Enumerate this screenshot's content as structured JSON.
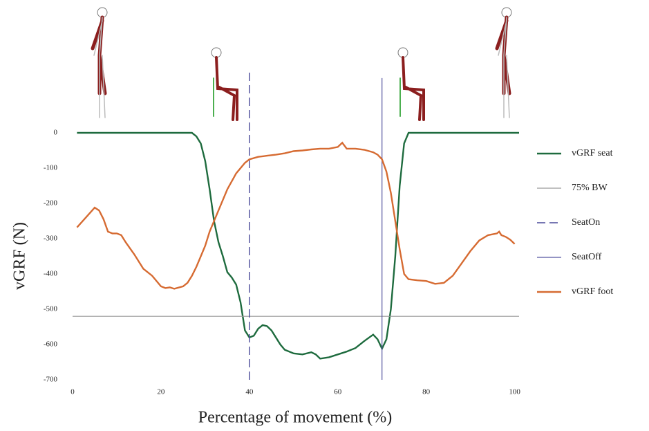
{
  "chart_data": {
    "type": "line",
    "y_label": "vGRF (N)",
    "x_label": "Percentage of movement (%)",
    "xlim": [
      0,
      101
    ],
    "ylim": [
      -700,
      0
    ],
    "xticks": [
      0,
      20,
      40,
      60,
      80,
      100
    ],
    "yticks": [
      0,
      -100,
      -200,
      -300,
      -400,
      -500,
      -600,
      -700
    ],
    "grid": false,
    "legend": "right",
    "series": [
      {
        "name": "vGRF seat",
        "color": "#1e6b3e",
        "style": "solid",
        "width": 2.4,
        "x": [
          1,
          27,
          28,
          29,
          30,
          31,
          32,
          33,
          34,
          35,
          36,
          37,
          38,
          39,
          40,
          41,
          42,
          43,
          44,
          45,
          46,
          47,
          48,
          50,
          52,
          54,
          55,
          56,
          58,
          60,
          62,
          64,
          66,
          68,
          69,
          70,
          71,
          72,
          73,
          74,
          75,
          76,
          101
        ],
        "values": [
          0,
          0,
          -10,
          -30,
          -80,
          -160,
          -250,
          -310,
          -350,
          -395,
          -410,
          -430,
          -480,
          -560,
          -580,
          -575,
          -555,
          -545,
          -548,
          -560,
          -580,
          -600,
          -615,
          -625,
          -628,
          -622,
          -628,
          -640,
          -636,
          -628,
          -620,
          -610,
          -590,
          -572,
          -585,
          -612,
          -585,
          -500,
          -350,
          -150,
          -30,
          0,
          0
        ]
      },
      {
        "name": "75% BW",
        "color": "#9a9a9a",
        "style": "solid",
        "width": 1.2,
        "x": [
          0,
          101
        ],
        "values": [
          -520,
          -520
        ]
      },
      {
        "name": "SeatOn",
        "color": "#4a4a9a",
        "style": "dashed",
        "width": 1.4,
        "x": [
          40,
          40
        ],
        "values": [
          -700,
          180
        ]
      },
      {
        "name": "SeatOff",
        "color": "#5555a0",
        "style": "solid",
        "width": 1.2,
        "x": [
          70,
          70
        ],
        "values": [
          -700,
          155
        ]
      },
      {
        "name": "vGRF foot",
        "color": "#d66b32",
        "style": "solid",
        "width": 2.4,
        "x": [
          1,
          3,
          5,
          6,
          7,
          8,
          9,
          10,
          11,
          12,
          14,
          16,
          18,
          20,
          21,
          22,
          23,
          25,
          26,
          27,
          28,
          30,
          31,
          33,
          35,
          37,
          39,
          40,
          42,
          44,
          46,
          48,
          50,
          52,
          54,
          56,
          58,
          60,
          61,
          62,
          64,
          66,
          68,
          69,
          70,
          71,
          72,
          73,
          74,
          75,
          76,
          78,
          80,
          82,
          84,
          86,
          88,
          90,
          92,
          94,
          96,
          96.5,
          97,
          98,
          99,
          100
        ],
        "values": [
          -268,
          -240,
          -212,
          -220,
          -245,
          -280,
          -285,
          -285,
          -290,
          -310,
          -345,
          -385,
          -405,
          -435,
          -440,
          -438,
          -442,
          -435,
          -425,
          -405,
          -380,
          -320,
          -280,
          -220,
          -160,
          -115,
          -85,
          -75,
          -68,
          -65,
          -62,
          -58,
          -52,
          -50,
          -47,
          -45,
          -45,
          -40,
          -28,
          -45,
          -45,
          -48,
          -55,
          -62,
          -75,
          -110,
          -170,
          -250,
          -330,
          -400,
          -415,
          -418,
          -420,
          -428,
          -425,
          -405,
          -370,
          -335,
          -305,
          -290,
          -285,
          -280,
          -290,
          -295,
          -303,
          -315
        ]
      }
    ]
  }
}
